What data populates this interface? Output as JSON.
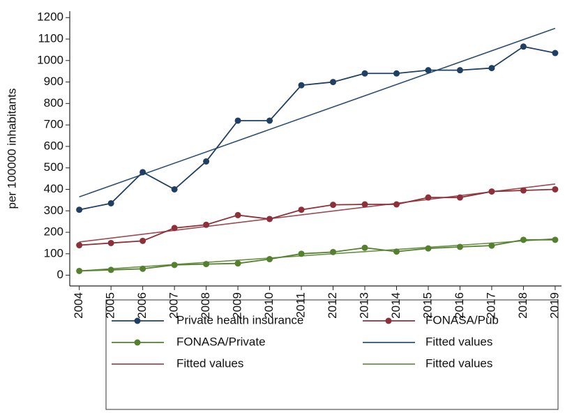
{
  "chart_data": {
    "type": "line",
    "y_label": "per 100000 inhabitants",
    "x": [
      2004,
      2005,
      2006,
      2007,
      2008,
      2009,
      2010,
      2011,
      2012,
      2013,
      2014,
      2015,
      2016,
      2017,
      2018,
      2019
    ],
    "xlim": [
      2003.7,
      2019.2
    ],
    "xticks": [
      2004,
      2005,
      2006,
      2007,
      2008,
      2009,
      2010,
      2011,
      2012,
      2013,
      2014,
      2015,
      2016,
      2017,
      2018,
      2019
    ],
    "ylim": [
      -50,
      1230
    ],
    "yticks": [
      0,
      100,
      200,
      300,
      400,
      500,
      600,
      700,
      800,
      900,
      1000,
      1100,
      1200
    ],
    "grid": false,
    "legend": "bottom",
    "series": [
      {
        "name": "Private health insurance",
        "color": "#1f3f63",
        "marker": true,
        "values": [
          305,
          335,
          480,
          400,
          530,
          720,
          720,
          885,
          900,
          940,
          940,
          955,
          955,
          965,
          1065,
          1035
        ]
      },
      {
        "name": "FONASA/Pub",
        "color": "#8e3039",
        "marker": true,
        "values": [
          140,
          150,
          160,
          220,
          235,
          280,
          262,
          305,
          328,
          330,
          330,
          362,
          362,
          390,
          395,
          400
        ]
      },
      {
        "name": "FONASA/Private",
        "color": "#55802e",
        "marker": true,
        "values": [
          20,
          25,
          30,
          48,
          52,
          55,
          75,
          100,
          108,
          128,
          110,
          125,
          132,
          138,
          165,
          165
        ]
      },
      {
        "name": "Fitted values",
        "color": "#2d4f73",
        "marker": false,
        "x": [
          2004,
          2019
        ],
        "values": [
          365,
          1150
        ]
      },
      {
        "name": "Fitted values",
        "color": "#9c4a52",
        "marker": false,
        "x": [
          2004,
          2019
        ],
        "values": [
          155,
          425
        ]
      },
      {
        "name": "Fitted values",
        "color": "#6a8f48",
        "marker": false,
        "x": [
          2004,
          2019
        ],
        "values": [
          20,
          170
        ]
      }
    ]
  }
}
